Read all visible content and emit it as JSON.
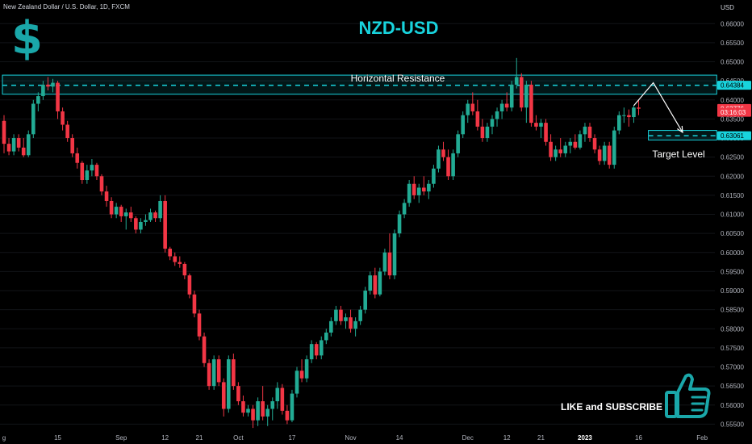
{
  "header": {
    "symbol_title": "New Zealand Dollar / U.S. Dollar, 1D, FXCM",
    "currency": "USD"
  },
  "overlay": {
    "main_title": "NZD-USD",
    "resistance_label": "Horizontal Resistance",
    "target_label": "Target Level",
    "cta_text": "LIKE and SUBSCRIBE",
    "dollar_icon": "$",
    "icons": [
      "dollar-icon",
      "thumbs-up-icon"
    ]
  },
  "chart_data": {
    "type": "candlestick",
    "title": "NZD-USD",
    "xlabel": "",
    "ylabel": "",
    "y_axis_position": "right",
    "ylim": [
      0.5536,
      0.6662
    ],
    "y_ticks": [
      0.66,
      0.655,
      0.65,
      0.645,
      0.64,
      0.635,
      0.63,
      0.625,
      0.62,
      0.615,
      0.61,
      0.605,
      0.6,
      0.595,
      0.59,
      0.585,
      0.58,
      0.575,
      0.57,
      0.565,
      0.56,
      0.555
    ],
    "y_tick_labels": [
      "0.66000",
      "0.65500",
      "0.65000",
      "0.64500",
      "0.64000",
      "0.63500",
      "0.63000",
      "0.62500",
      "0.62000",
      "0.61500",
      "0.61000",
      "0.60500",
      "0.60000",
      "0.59500",
      "0.59000",
      "0.58500",
      "0.58000",
      "0.57500",
      "0.57000",
      "0.56500",
      "0.56000",
      "0.55500"
    ],
    "x_ticks": [
      {
        "label": "g",
        "bar": 0
      },
      {
        "label": "15",
        "bar": 11
      },
      {
        "label": "Sep",
        "bar": 24
      },
      {
        "label": "12",
        "bar": 33
      },
      {
        "label": "21",
        "bar": 40
      },
      {
        "label": "Oct",
        "bar": 48
      },
      {
        "label": "17",
        "bar": 59
      },
      {
        "label": "Nov",
        "bar": 71
      },
      {
        "label": "14",
        "bar": 81
      },
      {
        "label": "Dec",
        "bar": 95
      },
      {
        "label": "12",
        "bar": 103
      },
      {
        "label": "21",
        "bar": 110
      },
      {
        "label": "2023",
        "bar": 119
      },
      {
        "label": "16",
        "bar": 130
      },
      {
        "label": "Feb",
        "bar": 143
      }
    ],
    "price_labels": [
      {
        "label": "0.64384",
        "value": 0.64384,
        "color": "#18d3dd"
      },
      {
        "label": "0.63776",
        "value": 0.63776,
        "color": "#f23645"
      },
      {
        "label": "03:16:03",
        "value": 0.63676,
        "color": "#f23645"
      },
      {
        "label": "0.63061",
        "value": 0.63061,
        "color": "#18d3dd"
      }
    ],
    "annotations": {
      "resistance_zone": {
        "top": 0.6465,
        "bottom": 0.6415,
        "level": 0.64384,
        "from_bar": 0,
        "to_bar": 146
      },
      "target_zone": {
        "top": 0.632,
        "bottom": 0.6295,
        "level": 0.63061,
        "from_bar": 132,
        "to_bar": 146
      },
      "projection": [
        {
          "bar": 129,
          "price": 0.6385
        },
        {
          "bar": 133,
          "price": 0.6445
        },
        {
          "bar": 139,
          "price": 0.6315
        }
      ]
    },
    "colors": {
      "up": "#22ab94",
      "down": "#f23645",
      "accent": "#18d3dd",
      "background": "#000000",
      "axis_text": "#b2b5be"
    },
    "ohlc": [
      [
        0.6345,
        0.636,
        0.626,
        0.6285
      ],
      [
        0.6285,
        0.63,
        0.6255,
        0.6265
      ],
      [
        0.6265,
        0.631,
        0.6255,
        0.63
      ],
      [
        0.63,
        0.631,
        0.6265,
        0.6275
      ],
      [
        0.6275,
        0.63,
        0.625,
        0.6255
      ],
      [
        0.6255,
        0.632,
        0.625,
        0.631
      ],
      [
        0.631,
        0.64,
        0.63,
        0.639
      ],
      [
        0.639,
        0.642,
        0.637,
        0.641
      ],
      [
        0.641,
        0.645,
        0.64,
        0.644
      ],
      [
        0.644,
        0.646,
        0.6425,
        0.6435
      ],
      [
        0.6435,
        0.6455,
        0.642,
        0.6445
      ],
      [
        0.6445,
        0.645,
        0.635,
        0.637
      ],
      [
        0.637,
        0.638,
        0.632,
        0.6335
      ],
      [
        0.6335,
        0.6345,
        0.629,
        0.63
      ],
      [
        0.63,
        0.631,
        0.625,
        0.626
      ],
      [
        0.626,
        0.6275,
        0.622,
        0.6235
      ],
      [
        0.6235,
        0.624,
        0.618,
        0.619
      ],
      [
        0.619,
        0.623,
        0.618,
        0.6215
      ],
      [
        0.6215,
        0.6245,
        0.62,
        0.623
      ],
      [
        0.623,
        0.6235,
        0.619,
        0.62
      ],
      [
        0.62,
        0.6205,
        0.615,
        0.616
      ],
      [
        0.616,
        0.6175,
        0.612,
        0.6135
      ],
      [
        0.6135,
        0.6145,
        0.609,
        0.61
      ],
      [
        0.61,
        0.613,
        0.609,
        0.612
      ],
      [
        0.612,
        0.6125,
        0.608,
        0.6095
      ],
      [
        0.6095,
        0.6115,
        0.606,
        0.6105
      ],
      [
        0.6105,
        0.612,
        0.608,
        0.609
      ],
      [
        0.609,
        0.6095,
        0.605,
        0.606
      ],
      [
        0.606,
        0.609,
        0.605,
        0.608
      ],
      [
        0.608,
        0.61,
        0.607,
        0.6085
      ],
      [
        0.6085,
        0.6115,
        0.608,
        0.6105
      ],
      [
        0.6105,
        0.611,
        0.608,
        0.609
      ],
      [
        0.609,
        0.615,
        0.608,
        0.6135
      ],
      [
        0.6135,
        0.615,
        0.6,
        0.601
      ],
      [
        0.601,
        0.6015,
        0.598,
        0.599
      ],
      [
        0.599,
        0.6,
        0.5965,
        0.5975
      ],
      [
        0.5975,
        0.599,
        0.596,
        0.597
      ],
      [
        0.597,
        0.5975,
        0.593,
        0.594
      ],
      [
        0.594,
        0.5945,
        0.588,
        0.589
      ],
      [
        0.589,
        0.59,
        0.583,
        0.584
      ],
      [
        0.584,
        0.585,
        0.577,
        0.578
      ],
      [
        0.578,
        0.579,
        0.57,
        0.571
      ],
      [
        0.571,
        0.572,
        0.564,
        0.565
      ],
      [
        0.565,
        0.573,
        0.564,
        0.572
      ],
      [
        0.572,
        0.573,
        0.565,
        0.566
      ],
      [
        0.566,
        0.567,
        0.557,
        0.559
      ],
      [
        0.559,
        0.573,
        0.558,
        0.572
      ],
      [
        0.572,
        0.5735,
        0.564,
        0.565
      ],
      [
        0.565,
        0.566,
        0.56,
        0.561
      ],
      [
        0.561,
        0.5625,
        0.557,
        0.558
      ],
      [
        0.558,
        0.56,
        0.557,
        0.559
      ],
      [
        0.559,
        0.56,
        0.554,
        0.556
      ],
      [
        0.556,
        0.562,
        0.5545,
        0.561
      ],
      [
        0.561,
        0.565,
        0.556,
        0.557
      ],
      [
        0.557,
        0.56,
        0.5545,
        0.559
      ],
      [
        0.559,
        0.562,
        0.556,
        0.561
      ],
      [
        0.561,
        0.566,
        0.559,
        0.5645
      ],
      [
        0.5645,
        0.5655,
        0.5575,
        0.5585
      ],
      [
        0.5585,
        0.56,
        0.555,
        0.556
      ],
      [
        0.556,
        0.564,
        0.5555,
        0.563
      ],
      [
        0.563,
        0.57,
        0.562,
        0.569
      ],
      [
        0.569,
        0.572,
        0.566,
        0.567
      ],
      [
        0.567,
        0.573,
        0.566,
        0.572
      ],
      [
        0.572,
        0.577,
        0.571,
        0.576
      ],
      [
        0.576,
        0.5765,
        0.572,
        0.573
      ],
      [
        0.573,
        0.578,
        0.572,
        0.577
      ],
      [
        0.577,
        0.58,
        0.576,
        0.579
      ],
      [
        0.579,
        0.583,
        0.578,
        0.582
      ],
      [
        0.582,
        0.586,
        0.581,
        0.585
      ],
      [
        0.585,
        0.586,
        0.581,
        0.582
      ],
      [
        0.582,
        0.584,
        0.58,
        0.583
      ],
      [
        0.583,
        0.585,
        0.579,
        0.58
      ],
      [
        0.58,
        0.583,
        0.578,
        0.582
      ],
      [
        0.582,
        0.586,
        0.581,
        0.585
      ],
      [
        0.585,
        0.591,
        0.584,
        0.59
      ],
      [
        0.59,
        0.595,
        0.589,
        0.594
      ],
      [
        0.594,
        0.596,
        0.588,
        0.589
      ],
      [
        0.589,
        0.596,
        0.5885,
        0.595
      ],
      [
        0.595,
        0.601,
        0.594,
        0.6
      ],
      [
        0.6,
        0.605,
        0.593,
        0.594
      ],
      [
        0.594,
        0.606,
        0.593,
        0.605
      ],
      [
        0.605,
        0.611,
        0.604,
        0.61
      ],
      [
        0.61,
        0.614,
        0.609,
        0.613
      ],
      [
        0.613,
        0.619,
        0.612,
        0.618
      ],
      [
        0.618,
        0.62,
        0.614,
        0.615
      ],
      [
        0.615,
        0.618,
        0.613,
        0.617
      ],
      [
        0.617,
        0.62,
        0.615,
        0.616
      ],
      [
        0.616,
        0.619,
        0.614,
        0.618
      ],
      [
        0.618,
        0.623,
        0.617,
        0.622
      ],
      [
        0.622,
        0.628,
        0.621,
        0.627
      ],
      [
        0.627,
        0.629,
        0.624,
        0.625
      ],
      [
        0.625,
        0.627,
        0.619,
        0.62
      ],
      [
        0.62,
        0.627,
        0.619,
        0.626
      ],
      [
        0.626,
        0.632,
        0.625,
        0.631
      ],
      [
        0.631,
        0.637,
        0.63,
        0.636
      ],
      [
        0.636,
        0.64,
        0.634,
        0.639
      ],
      [
        0.639,
        0.642,
        0.636,
        0.637
      ],
      [
        0.637,
        0.64,
        0.632,
        0.633
      ],
      [
        0.633,
        0.635,
        0.629,
        0.63
      ],
      [
        0.63,
        0.634,
        0.629,
        0.633
      ],
      [
        0.633,
        0.636,
        0.631,
        0.635
      ],
      [
        0.635,
        0.638,
        0.633,
        0.637
      ],
      [
        0.637,
        0.64,
        0.635,
        0.639
      ],
      [
        0.639,
        0.642,
        0.637,
        0.638
      ],
      [
        0.638,
        0.645,
        0.637,
        0.644
      ],
      [
        0.644,
        0.651,
        0.643,
        0.646
      ],
      [
        0.646,
        0.647,
        0.637,
        0.638
      ],
      [
        0.638,
        0.645,
        0.634,
        0.644
      ],
      [
        0.644,
        0.645,
        0.633,
        0.634
      ],
      [
        0.634,
        0.636,
        0.632,
        0.633
      ],
      [
        0.633,
        0.635,
        0.63,
        0.634
      ],
      [
        0.634,
        0.635,
        0.628,
        0.629
      ],
      [
        0.629,
        0.631,
        0.624,
        0.625
      ],
      [
        0.625,
        0.628,
        0.624,
        0.627
      ],
      [
        0.627,
        0.63,
        0.625,
        0.626
      ],
      [
        0.626,
        0.629,
        0.625,
        0.628
      ],
      [
        0.628,
        0.63,
        0.626,
        0.629
      ],
      [
        0.629,
        0.631,
        0.627,
        0.6275
      ],
      [
        0.6275,
        0.632,
        0.627,
        0.631
      ],
      [
        0.631,
        0.634,
        0.629,
        0.633
      ],
      [
        0.633,
        0.634,
        0.629,
        0.63
      ],
      [
        0.63,
        0.631,
        0.626,
        0.627
      ],
      [
        0.627,
        0.628,
        0.623,
        0.624
      ],
      [
        0.624,
        0.629,
        0.623,
        0.628
      ],
      [
        0.628,
        0.629,
        0.622,
        0.623
      ],
      [
        0.623,
        0.633,
        0.622,
        0.632
      ],
      [
        0.632,
        0.637,
        0.631,
        0.636
      ],
      [
        0.636,
        0.638,
        0.634,
        0.636
      ],
      [
        0.636,
        0.6375,
        0.633,
        0.6355
      ],
      [
        0.6355,
        0.6385,
        0.634,
        0.638
      ],
      [
        0.638,
        0.64,
        0.636,
        0.6377
      ]
    ]
  }
}
